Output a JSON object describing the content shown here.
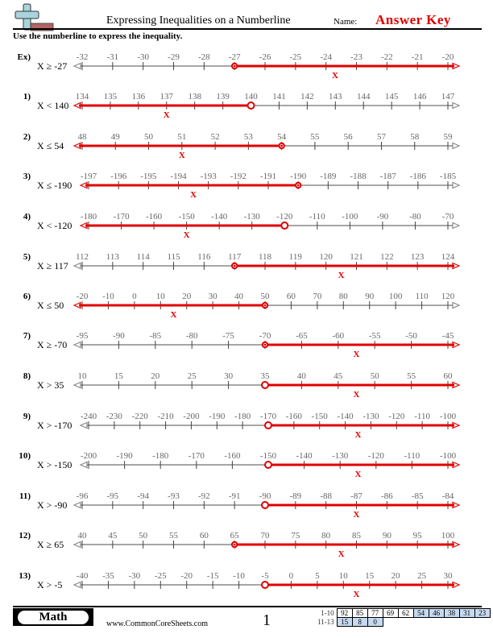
{
  "header": {
    "title": "Expressing Inequalities on a Numberline",
    "name_label": "Name:",
    "answer_key": "Answer Key",
    "instructions": "Use the numberline to express the inequality."
  },
  "colors": {
    "accent_red": "#e00000",
    "line_gray": "#888888",
    "logo_blue": "#a9d4de",
    "logo_red": "#b46464",
    "score_blue": "#c6d9f1"
  },
  "problems": [
    {
      "num": "Ex)",
      "inequality": "X ≥ -27",
      "ticks": [
        "-32",
        "-31",
        "-30",
        "-29",
        "-28",
        "-27",
        "-26",
        "-25",
        "-24",
        "-23",
        "-22",
        "-21",
        "-20"
      ],
      "point_index": 5,
      "closed": true,
      "direction": "right",
      "x_mark_index": 8.3
    },
    {
      "num": "1)",
      "inequality": "X < 140",
      "ticks": [
        "134",
        "135",
        "136",
        "137",
        "138",
        "139",
        "140",
        "141",
        "142",
        "143",
        "144",
        "145",
        "146",
        "147"
      ],
      "point_index": 6,
      "closed": false,
      "direction": "left",
      "x_mark_index": 3
    },
    {
      "num": "2)",
      "inequality": "X ≤ 54",
      "ticks": [
        "48",
        "49",
        "50",
        "51",
        "52",
        "53",
        "54",
        "55",
        "56",
        "57",
        "58",
        "59"
      ],
      "point_index": 6,
      "closed": true,
      "direction": "left",
      "x_mark_index": 3
    },
    {
      "num": "3)",
      "inequality": "X ≤ -190",
      "ticks": [
        "-197",
        "-196",
        "-195",
        "-194",
        "-193",
        "-192",
        "-191",
        "-190",
        "-189",
        "-188",
        "-187",
        "-186",
        "-185"
      ],
      "point_index": 7,
      "closed": true,
      "direction": "left",
      "x_mark_index": 3.5
    },
    {
      "num": "4)",
      "inequality": "X < -120",
      "ticks": [
        "-180",
        "-170",
        "-160",
        "-150",
        "-140",
        "-130",
        "-120",
        "-110",
        "-100",
        "-90",
        "-80",
        "-70"
      ],
      "point_index": 6,
      "closed": false,
      "direction": "left",
      "x_mark_index": 3
    },
    {
      "num": "5)",
      "inequality": "X ≥ 117",
      "ticks": [
        "112",
        "113",
        "114",
        "115",
        "116",
        "117",
        "118",
        "119",
        "120",
        "121",
        "122",
        "123",
        "124"
      ],
      "point_index": 5,
      "closed": true,
      "direction": "right",
      "x_mark_index": 8.5
    },
    {
      "num": "6)",
      "inequality": "X ≤ 50",
      "ticks": [
        "-20",
        "-10",
        "0",
        "10",
        "20",
        "30",
        "40",
        "50",
        "60",
        "70",
        "80",
        "90",
        "100",
        "110",
        "120"
      ],
      "point_index": 7,
      "closed": true,
      "direction": "left",
      "x_mark_index": 3.5
    },
    {
      "num": "7)",
      "inequality": "X ≥ -70",
      "ticks": [
        "-95",
        "-90",
        "-85",
        "-80",
        "-75",
        "-70",
        "-65",
        "-60",
        "-55",
        "-50",
        "-45"
      ],
      "point_index": 5,
      "closed": true,
      "direction": "right",
      "x_mark_index": 7.5
    },
    {
      "num": "8)",
      "inequality": "X > 35",
      "ticks": [
        "10",
        "15",
        "20",
        "25",
        "30",
        "35",
        "40",
        "45",
        "50",
        "55",
        "60"
      ],
      "point_index": 5,
      "closed": false,
      "direction": "right",
      "x_mark_index": 7.5
    },
    {
      "num": "9)",
      "inequality": "X > -170",
      "ticks": [
        "-240",
        "-230",
        "-220",
        "-210",
        "-200",
        "-190",
        "-180",
        "-170",
        "-160",
        "-150",
        "-140",
        "-130",
        "-120",
        "-110",
        "-100"
      ],
      "point_index": 7,
      "closed": false,
      "direction": "right",
      "x_mark_index": 10.5
    },
    {
      "num": "10)",
      "inequality": "X > -150",
      "ticks": [
        "-200",
        "-190",
        "-180",
        "-170",
        "-160",
        "-150",
        "-140",
        "-130",
        "-120",
        "-110",
        "-100"
      ],
      "point_index": 5,
      "closed": false,
      "direction": "right",
      "x_mark_index": 7.5
    },
    {
      "num": "11)",
      "inequality": "X > -90",
      "ticks": [
        "-96",
        "-95",
        "-94",
        "-93",
        "-92",
        "-91",
        "-90",
        "-89",
        "-88",
        "-87",
        "-86",
        "-85",
        "-84"
      ],
      "point_index": 6,
      "closed": false,
      "direction": "right",
      "x_mark_index": 9
    },
    {
      "num": "12)",
      "inequality": "X ≥ 65",
      "ticks": [
        "40",
        "45",
        "50",
        "55",
        "60",
        "65",
        "70",
        "75",
        "80",
        "85",
        "90",
        "95",
        "100"
      ],
      "point_index": 5,
      "closed": true,
      "direction": "right",
      "x_mark_index": 8.5
    },
    {
      "num": "13)",
      "inequality": "X > -5",
      "ticks": [
        "-40",
        "-35",
        "-30",
        "-25",
        "-20",
        "-15",
        "-10",
        "-5",
        "0",
        "5",
        "10",
        "15",
        "20",
        "25",
        "30"
      ],
      "point_index": 7,
      "closed": false,
      "direction": "right",
      "x_mark_index": 10.5
    }
  ],
  "x_mark": "X",
  "footer": {
    "subject": "Math",
    "website": "www.CommonCoreSheets.com",
    "page": "1",
    "score_rows": [
      {
        "label": "1-10",
        "cells": [
          "92",
          "85",
          "77",
          "69",
          "62",
          "54",
          "46",
          "38",
          "31",
          "23"
        ],
        "blue": [
          false,
          false,
          false,
          false,
          false,
          true,
          true,
          true,
          true,
          true
        ]
      },
      {
        "label": "11-13",
        "cells": [
          "15",
          "8",
          "0"
        ],
        "blue": [
          true,
          true,
          true
        ]
      }
    ]
  }
}
